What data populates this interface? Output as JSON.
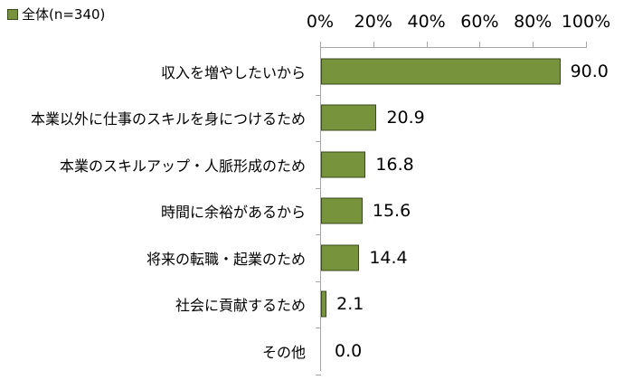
{
  "legend": {
    "label": "全体(n=340)",
    "color": "#77933C"
  },
  "chart_data": {
    "type": "bar",
    "orientation": "horizontal",
    "title": "",
    "xlabel": "",
    "ylabel": "",
    "xlim": [
      0,
      100
    ],
    "x_ticks": [
      "0%",
      "20%",
      "40%",
      "60%",
      "80%",
      "100%"
    ],
    "axis_position": "top",
    "legend_position": "top-left",
    "grid": false,
    "categories": [
      "収入を増やしたいから",
      "本業以外に仕事のスキルを身につけるため",
      "本業のスキルアップ・人脈形成のため",
      "時間に余裕があるから",
      "将来の転職・起業のため",
      "社会に貢献するため",
      "その他"
    ],
    "series": [
      {
        "name": "全体(n=340)",
        "color": "#77933C",
        "values": [
          90.0,
          20.9,
          16.8,
          15.6,
          14.4,
          2.1,
          0.0
        ],
        "labels": [
          "90.0",
          "20.9",
          "16.8",
          "15.6",
          "14.4",
          "2.1",
          "0.0"
        ]
      }
    ]
  }
}
